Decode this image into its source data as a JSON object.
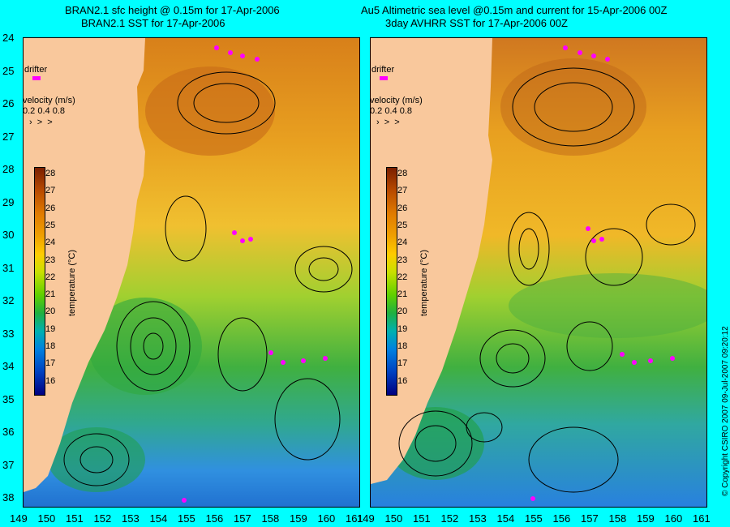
{
  "left_panel": {
    "title_line1": "BRAN2.1 sfc height @ 0.15m for 17-Apr-2006",
    "title_line2": "BRAN2.1 SST for 17-Apr-2006"
  },
  "right_panel": {
    "title_line1": "Au5 Altimetric sea level  @0.15m and current for 15-Apr-2006 00Z",
    "title_line2": "3day AVHRR SST for 17-Apr-2006 00Z"
  },
  "legend": {
    "drifter_label": "drifter",
    "velocity_label": "velocity (m/s)",
    "velocity_values": "0.2 0.4 0.8",
    "colorbar_label": "temperature (°C)",
    "colorbar_ticks": [
      "28",
      "27",
      "26",
      "25",
      "24",
      "23",
      "22",
      "21",
      "20",
      "19",
      "18",
      "17",
      "16"
    ]
  },
  "y_ticks": [
    "24",
    "25",
    "26",
    "27",
    "28",
    "29",
    "30",
    "31",
    "32",
    "33",
    "34",
    "35",
    "36",
    "37",
    "38"
  ],
  "x_ticks_left": [
    "149",
    "150",
    "151",
    "152",
    "153",
    "154",
    "155",
    "156",
    "157",
    "158",
    "159",
    "160",
    "161"
  ],
  "x_ticks_right": [
    "149",
    "150",
    "151",
    "152",
    "153",
    "154",
    "155",
    "156",
    "157",
    "158",
    "159",
    "160",
    "161"
  ],
  "copyright": "© Copyright CSIRO 2007   09-Jul-2007 09:20:12",
  "colors": {
    "background": "#00ffff",
    "land": "#f9c89c",
    "drifter": "#ff00ff",
    "warm": "#e08a1a",
    "mid": "#f0c020",
    "cool": "#40b040",
    "cold": "#2090e0"
  }
}
